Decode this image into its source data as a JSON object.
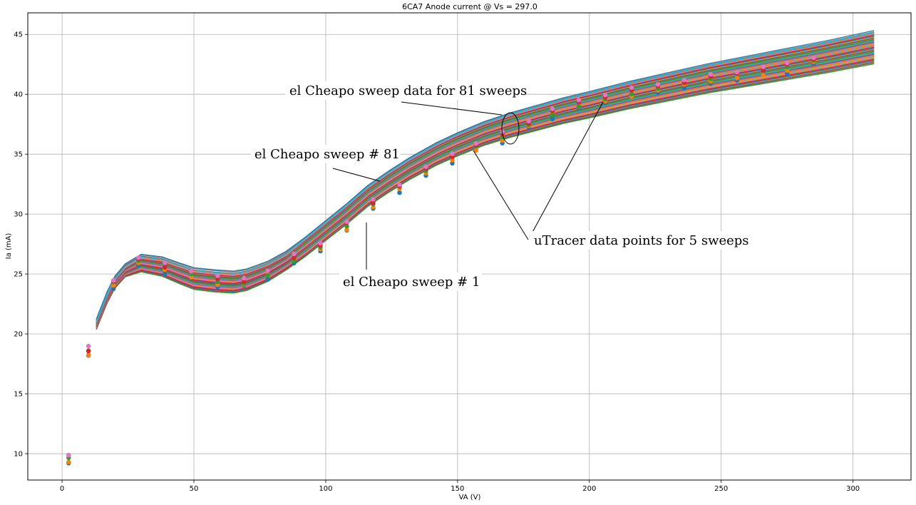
{
  "chart_data": {
    "type": "line",
    "title": "6CA7 Anode current @ Vs = 297.0",
    "xlabel": "VA (V)",
    "ylabel": "Ia (mA)",
    "xlim": [
      -13,
      322
    ],
    "ylim": [
      7.8,
      46.8
    ],
    "xticks": [
      "0",
      "50",
      "100",
      "150",
      "200",
      "250",
      "300"
    ],
    "yticks": [
      "10",
      "15",
      "20",
      "25",
      "30",
      "35",
      "40",
      "45"
    ],
    "grid": true,
    "sweep_count": 81,
    "mean_sweep": {
      "x": [
        13,
        17,
        20,
        24,
        30,
        38,
        45,
        50,
        58,
        65,
        70,
        78,
        85,
        92,
        100,
        108,
        116,
        124,
        132,
        142,
        150,
        160,
        170,
        180,
        190,
        200,
        215,
        230,
        245,
        260,
        275,
        290,
        308
      ],
      "y": [
        20.8,
        23.0,
        24.3,
        25.3,
        25.9,
        25.6,
        25.0,
        24.6,
        24.4,
        24.3,
        24.5,
        25.2,
        26.1,
        27.2,
        28.6,
        30.0,
        31.5,
        32.7,
        33.8,
        35.0,
        35.8,
        36.7,
        37.4,
        38.0,
        38.6,
        39.1,
        39.9,
        40.6,
        41.3,
        41.9,
        42.5,
        43.1,
        43.9
      ]
    },
    "sweep_colors": [
      "#1f77b4",
      "#ff7f0e",
      "#2ca02c",
      "#d62728",
      "#9467bd",
      "#8c564b",
      "#e377c2",
      "#7f7f7f",
      "#bcbd22",
      "#17becf"
    ],
    "utracer_points": {
      "x": [
        2.5,
        10,
        19.5,
        29,
        39,
        49,
        59,
        69,
        78,
        88,
        98,
        108,
        118,
        128,
        138,
        148,
        157,
        167,
        177,
        186,
        196,
        206,
        216,
        226,
        236,
        246,
        256,
        266,
        275,
        285
      ],
      "y": [
        9.6,
        18.5,
        24.2,
        26.0,
        25.5,
        25.0,
        24.4,
        24.3,
        25.0,
        26.2,
        27.3,
        29.0,
        30.8,
        32.2,
        33.5,
        34.7,
        35.6,
        36.4,
        37.5,
        38.4,
        39.1,
        39.7,
        40.1,
        40.5,
        40.9,
        41.2,
        41.6,
        41.9,
        42.2,
        42.8
      ]
    },
    "utracer_colors": [
      "#1f77b4",
      "#ff7f0e",
      "#2ca02c",
      "#d62728",
      "#e377c2"
    ],
    "annotations": [
      {
        "text": "el Cheapo sweep data for 81 sweeps"
      },
      {
        "text": "el Cheapo sweep # 81"
      },
      {
        "text": "uTracer data points for 5 sweeps"
      },
      {
        "text": "el Cheapo sweep # 1"
      }
    ]
  }
}
